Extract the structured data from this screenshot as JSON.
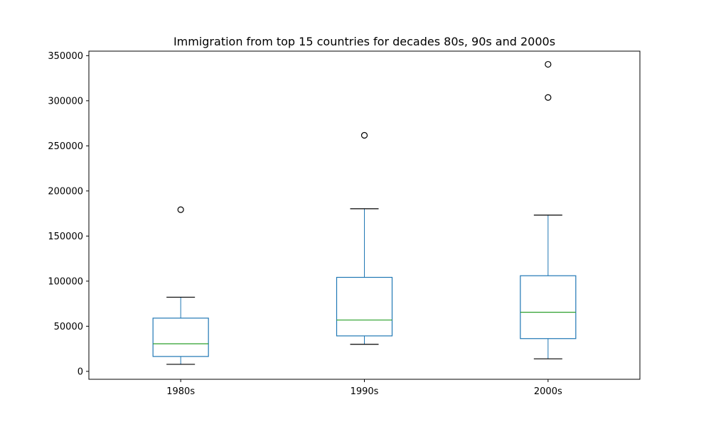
{
  "chart_data": {
    "type": "box",
    "title": "Immigration from top 15 countries for decades 80s, 90s and 2000s",
    "xlabel": "",
    "ylabel": "",
    "categories": [
      "1980s",
      "1990s",
      "2000s"
    ],
    "ylim": [
      -8800,
      355000
    ],
    "yticks": [
      0,
      50000,
      100000,
      150000,
      200000,
      250000,
      300000,
      350000
    ],
    "ytick_labels": [
      "0",
      "50000",
      "100000",
      "150000",
      "200000",
      "250000",
      "300000",
      "350000"
    ],
    "grid": false,
    "legend": "none",
    "colors": {
      "box": "#1f77b4",
      "median": "#2ca02c",
      "whisker_cap": "#000000",
      "flier": "#000000"
    },
    "boxes": [
      {
        "category": "1980s",
        "whisker_low": 7800,
        "q1": 16500,
        "median": 30600,
        "q3": 59000,
        "whisker_high": 82200,
        "fliers": [
          179200
        ]
      },
      {
        "category": "1990s",
        "whisker_low": 30000,
        "q1": 39300,
        "median": 56900,
        "q3": 104200,
        "whisker_high": 180300,
        "fliers": [
          261700
        ]
      },
      {
        "category": "2000s",
        "whisker_low": 13900,
        "q1": 36300,
        "median": 65500,
        "q3": 106000,
        "whisker_high": 173200,
        "fliers": [
          303600,
          340400
        ]
      }
    ]
  }
}
